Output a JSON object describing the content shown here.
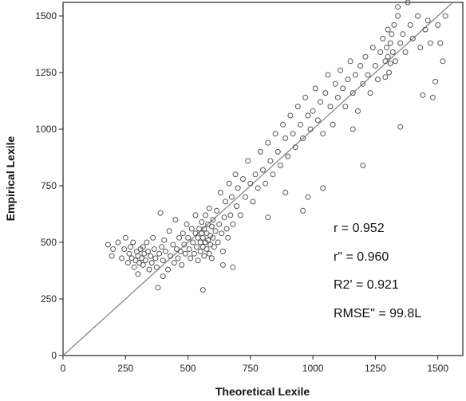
{
  "chart_data": {
    "type": "scatter",
    "title": "",
    "xlabel": "Theoretical Lexile",
    "ylabel": "Empirical Lexile",
    "xlim": [
      0,
      1600
    ],
    "ylim": [
      0,
      1560
    ],
    "x_ticks": [
      0,
      250,
      500,
      750,
      1000,
      1250,
      1500
    ],
    "y_ticks": [
      0,
      250,
      500,
      750,
      1000,
      1250,
      1500
    ],
    "grid": false,
    "legend": "none",
    "reference_line": {
      "from": [
        0,
        0
      ],
      "to": [
        1600,
        1600
      ]
    },
    "annotations": [
      {
        "name": "r",
        "text": "r  =  0.952"
      },
      {
        "name": "r-double-prime",
        "text": "r\"  =  0.960"
      },
      {
        "name": "r-squared",
        "text": "R2' = 0.921"
      },
      {
        "name": "rmse",
        "text": "RMSE\" = 99.8L"
      }
    ],
    "series": [
      {
        "marker": "open-circle",
        "color": "#555555",
        "points": [
          [
            180,
            490
          ],
          [
            195,
            440
          ],
          [
            200,
            470
          ],
          [
            220,
            500
          ],
          [
            235,
            430
          ],
          [
            245,
            470
          ],
          [
            250,
            520
          ],
          [
            260,
            410
          ],
          [
            265,
            450
          ],
          [
            270,
            480
          ],
          [
            275,
            430
          ],
          [
            280,
            500
          ],
          [
            285,
            390
          ],
          [
            290,
            420
          ],
          [
            295,
            460
          ],
          [
            300,
            440
          ],
          [
            305,
            410
          ],
          [
            310,
            470
          ],
          [
            315,
            430
          ],
          [
            320,
            400
          ],
          [
            320,
            480
          ],
          [
            325,
            450
          ],
          [
            330,
            420
          ],
          [
            335,
            500
          ],
          [
            340,
            460
          ],
          [
            345,
            380
          ],
          [
            350,
            440
          ],
          [
            355,
            410
          ],
          [
            360,
            520
          ],
          [
            365,
            470
          ],
          [
            370,
            430
          ],
          [
            375,
            390
          ],
          [
            380,
            300
          ],
          [
            385,
            450
          ],
          [
            390,
            630
          ],
          [
            395,
            480
          ],
          [
            400,
            420
          ],
          [
            405,
            510
          ],
          [
            410,
            460
          ],
          [
            420,
            380
          ],
          [
            425,
            550
          ],
          [
            430,
            440
          ],
          [
            440,
            490
          ],
          [
            445,
            410
          ],
          [
            450,
            600
          ],
          [
            455,
            470
          ],
          [
            460,
            430
          ],
          [
            465,
            520
          ],
          [
            470,
            460
          ],
          [
            475,
            400
          ],
          [
            480,
            540
          ],
          [
            485,
            490
          ],
          [
            490,
            450
          ],
          [
            495,
            580
          ],
          [
            500,
            520
          ],
          [
            505,
            470
          ],
          [
            510,
            430
          ],
          [
            515,
            560
          ],
          [
            520,
            500
          ],
          [
            525,
            450
          ],
          [
            530,
            620
          ],
          [
            530,
            540
          ],
          [
            535,
            480
          ],
          [
            540,
            420
          ],
          [
            540,
            520
          ],
          [
            545,
            560
          ],
          [
            550,
            500
          ],
          [
            550,
            460
          ],
          [
            555,
            540
          ],
          [
            555,
            590
          ],
          [
            560,
            520
          ],
          [
            560,
            480
          ],
          [
            565,
            560
          ],
          [
            565,
            440
          ],
          [
            570,
            500
          ],
          [
            570,
            620
          ],
          [
            575,
            540
          ],
          [
            575,
            470
          ],
          [
            580,
            580
          ],
          [
            580,
            510
          ],
          [
            585,
            450
          ],
          [
            585,
            650
          ],
          [
            590,
            530
          ],
          [
            590,
            490
          ],
          [
            595,
            570
          ],
          [
            595,
            430
          ],
          [
            600,
            520
          ],
          [
            600,
            600
          ],
          [
            605,
            480
          ],
          [
            610,
            550
          ],
          [
            615,
            640
          ],
          [
            620,
            500
          ],
          [
            625,
            580
          ],
          [
            630,
            720
          ],
          [
            635,
            540
          ],
          [
            640,
            460
          ],
          [
            645,
            610
          ],
          [
            650,
            680
          ],
          [
            655,
            560
          ],
          [
            660,
            520
          ],
          [
            665,
            760
          ],
          [
            670,
            620
          ],
          [
            675,
            700
          ],
          [
            680,
            580
          ],
          [
            690,
            800
          ],
          [
            695,
            660
          ],
          [
            700,
            740
          ],
          [
            710,
            620
          ],
          [
            720,
            780
          ],
          [
            730,
            700
          ],
          [
            740,
            860
          ],
          [
            750,
            760
          ],
          [
            760,
            680
          ],
          [
            770,
            800
          ],
          [
            780,
            740
          ],
          [
            790,
            900
          ],
          [
            800,
            820
          ],
          [
            810,
            760
          ],
          [
            820,
            940
          ],
          [
            830,
            860
          ],
          [
            840,
            800
          ],
          [
            850,
            980
          ],
          [
            860,
            900
          ],
          [
            870,
            840
          ],
          [
            880,
            1020
          ],
          [
            890,
            960
          ],
          [
            900,
            880
          ],
          [
            910,
            1060
          ],
          [
            920,
            980
          ],
          [
            930,
            920
          ],
          [
            940,
            1100
          ],
          [
            950,
            1020
          ],
          [
            960,
            960
          ],
          [
            970,
            1140
          ],
          [
            980,
            1060
          ],
          [
            990,
            1000
          ],
          [
            1000,
            1080
          ],
          [
            1010,
            1180
          ],
          [
            1020,
            1040
          ],
          [
            1030,
            1120
          ],
          [
            1040,
            980
          ],
          [
            1050,
            1160
          ],
          [
            1060,
            1240
          ],
          [
            1070,
            1100
          ],
          [
            1080,
            1020
          ],
          [
            1090,
            1200
          ],
          [
            1100,
            1140
          ],
          [
            1110,
            1260
          ],
          [
            1120,
            1180
          ],
          [
            1130,
            1100
          ],
          [
            1140,
            1220
          ],
          [
            1150,
            1300
          ],
          [
            1160,
            1160
          ],
          [
            1170,
            1240
          ],
          [
            1180,
            1080
          ],
          [
            1190,
            1280
          ],
          [
            1200,
            1200
          ],
          [
            1210,
            1320
          ],
          [
            1220,
            1240
          ],
          [
            1230,
            1160
          ],
          [
            1240,
            1360
          ],
          [
            1250,
            1280
          ],
          [
            1260,
            1220
          ],
          [
            1270,
            1340
          ],
          [
            1280,
            1400
          ],
          [
            1290,
            1300
          ],
          [
            1295,
            1360
          ],
          [
            1300,
            1440
          ],
          [
            1300,
            1320
          ],
          [
            1305,
            1250
          ],
          [
            1310,
            1380
          ],
          [
            1310,
            1290
          ],
          [
            1315,
            1420
          ],
          [
            1320,
            1340
          ],
          [
            1325,
            1460
          ],
          [
            1330,
            1300
          ],
          [
            1340,
            1500
          ],
          [
            1350,
            1380
          ],
          [
            1360,
            1420
          ],
          [
            1370,
            1340
          ],
          [
            1380,
            1560
          ],
          [
            1390,
            1460
          ],
          [
            1400,
            1400
          ],
          [
            1420,
            1500
          ],
          [
            1430,
            1360
          ],
          [
            1440,
            1150
          ],
          [
            1450,
            1440
          ],
          [
            1460,
            1480
          ],
          [
            1470,
            1380
          ],
          [
            1480,
            1140
          ],
          [
            1490,
            1210
          ],
          [
            1500,
            1460
          ],
          [
            1510,
            1380
          ],
          [
            1520,
            1300
          ],
          [
            1530,
            1500
          ],
          [
            1340,
            1540
          ],
          [
            1290,
            1230
          ],
          [
            1160,
            1000
          ],
          [
            1350,
            1010
          ],
          [
            1200,
            840
          ],
          [
            1040,
            740
          ],
          [
            980,
            700
          ],
          [
            960,
            640
          ],
          [
            890,
            720
          ],
          [
            820,
            610
          ],
          [
            680,
            390
          ],
          [
            560,
            290
          ],
          [
            640,
            400
          ],
          [
            400,
            350
          ],
          [
            300,
            360
          ]
        ]
      }
    ]
  }
}
